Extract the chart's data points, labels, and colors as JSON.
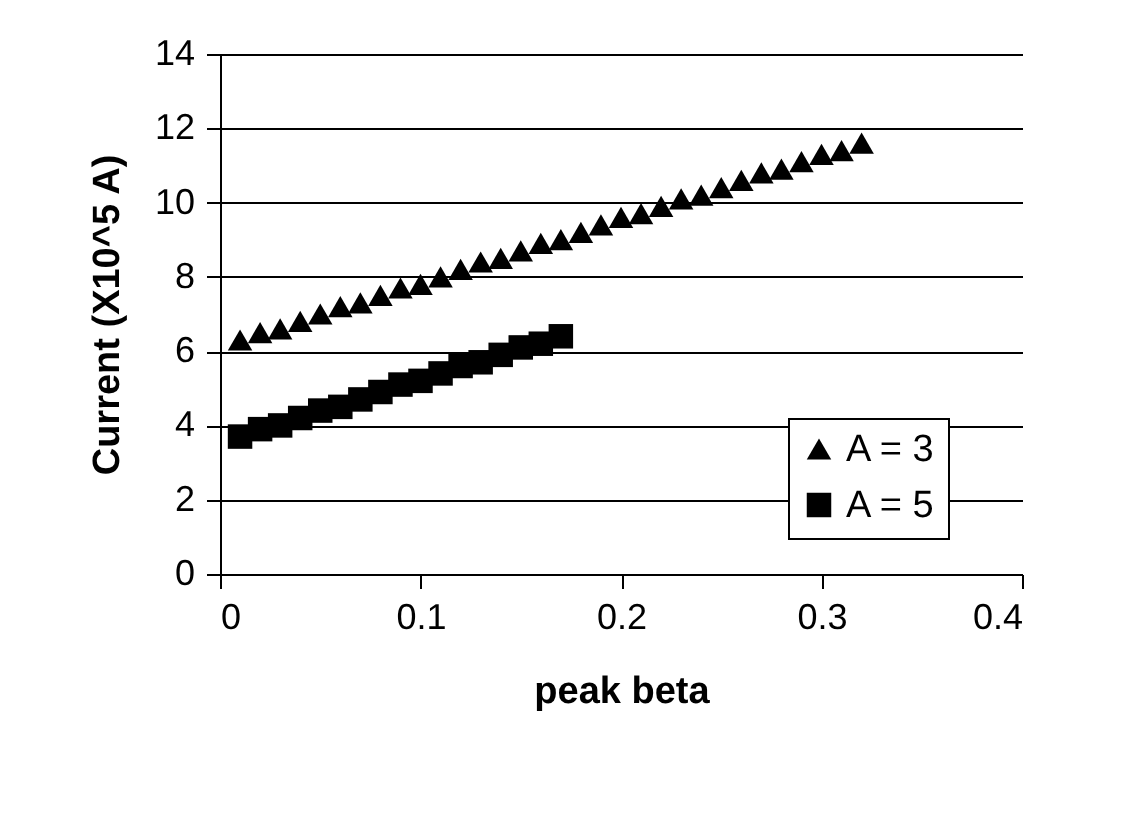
{
  "chart_data": {
    "type": "scatter",
    "xlabel": "peak beta",
    "ylabel": "Current (X10^5 A)",
    "xlim": [
      0,
      0.4
    ],
    "xticks": [
      0,
      0.1,
      0.2,
      0.3,
      0.4
    ],
    "ylim": [
      0,
      14
    ],
    "yticks": [
      0,
      2,
      4,
      6,
      8,
      10,
      12,
      14
    ],
    "grid": "y",
    "legend": "bottom right",
    "series": [
      {
        "name": "A = 3",
        "color": "#000000",
        "marker": "triangle",
        "x": [
          0.01,
          0.02,
          0.03,
          0.04,
          0.05,
          0.06,
          0.07,
          0.08,
          0.09,
          0.1,
          0.11,
          0.12,
          0.13,
          0.14,
          0.15,
          0.16,
          0.17,
          0.18,
          0.19,
          0.2,
          0.21,
          0.22,
          0.23,
          0.24,
          0.25,
          0.26,
          0.27,
          0.28,
          0.29,
          0.3,
          0.31,
          0.32
        ],
        "values": [
          6.3,
          6.5,
          6.6,
          6.8,
          7.0,
          7.2,
          7.3,
          7.5,
          7.7,
          7.8,
          8.0,
          8.2,
          8.4,
          8.5,
          8.7,
          8.9,
          9.0,
          9.2,
          9.4,
          9.6,
          9.7,
          9.9,
          10.1,
          10.2,
          10.4,
          10.6,
          10.8,
          10.9,
          11.1,
          11.3,
          11.4,
          11.6
        ]
      },
      {
        "name": "A = 5",
        "color": "#000000",
        "marker": "square",
        "x": [
          0.01,
          0.02,
          0.03,
          0.04,
          0.05,
          0.06,
          0.07,
          0.08,
          0.09,
          0.1,
          0.11,
          0.12,
          0.13,
          0.14,
          0.15,
          0.16,
          0.17
        ],
        "values": [
          3.7,
          3.9,
          4.0,
          4.2,
          4.4,
          4.5,
          4.7,
          4.9,
          5.1,
          5.2,
          5.4,
          5.6,
          5.7,
          5.9,
          6.1,
          6.2,
          6.4
        ]
      }
    ]
  }
}
